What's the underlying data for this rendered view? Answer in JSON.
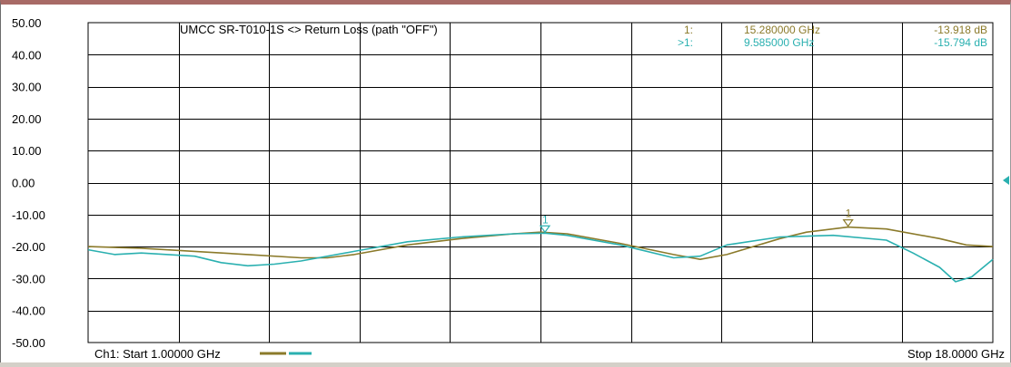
{
  "chart_data": {
    "type": "line",
    "title": "UMCC  SR-T010-1S <> Return Loss (path \"OFF\")",
    "xlim": [
      1.0,
      18.0
    ],
    "ylim": [
      -50,
      50
    ],
    "grid": true,
    "y_ticks": [
      "50.00",
      "40.00",
      "30.00",
      "20.00",
      "10.00",
      "0.00",
      "-10.00",
      "-20.00",
      "-30.00",
      "-40.00",
      "-50.00"
    ],
    "footer": {
      "start": "Ch1: Start  1.00000 GHz",
      "stop": "Stop  18.0000 GHz"
    },
    "series": [
      {
        "color": "#8b7a2a",
        "x": [
          1.0,
          2.0,
          3.0,
          4.0,
          5.0,
          5.5,
          6.0,
          7.0,
          8.0,
          9.0,
          9.5,
          10.0,
          11.0,
          12.0,
          12.5,
          13.0,
          14.0,
          14.5,
          15.28,
          16.0,
          17.0,
          17.5,
          18.0
        ],
        "y": [
          -20,
          -20.5,
          -21.5,
          -22.5,
          -23.5,
          -23.5,
          -22.5,
          -19.5,
          -17.5,
          -16.0,
          -15.5,
          -16.0,
          -19.0,
          -22.5,
          -24.0,
          -22.5,
          -17.5,
          -15.5,
          -13.918,
          -14.5,
          -17.5,
          -19.5,
          -20.0
        ]
      },
      {
        "color": "#2ab0b0",
        "x": [
          1.0,
          1.5,
          2.0,
          3.0,
          3.5,
          4.0,
          4.5,
          5.0,
          6.0,
          7.0,
          8.0,
          9.0,
          9.585,
          10.0,
          11.0,
          12.0,
          12.5,
          13.0,
          14.0,
          15.0,
          16.0,
          16.5,
          17.0,
          17.3,
          17.6,
          18.0
        ],
        "y": [
          -21.0,
          -22.5,
          -22.0,
          -23.0,
          -25.0,
          -26.0,
          -25.5,
          -24.5,
          -21.5,
          -18.5,
          -17.0,
          -16.0,
          -15.794,
          -16.5,
          -19.5,
          -23.5,
          -23.0,
          -19.5,
          -17.0,
          -16.5,
          -18.0,
          -22.0,
          -26.5,
          -31.0,
          -29.5,
          -24.0
        ]
      }
    ],
    "markers": [
      {
        "series": 0,
        "label": "1",
        "x": 15.28,
        "y": -13.918
      },
      {
        "series": 1,
        "label": "1",
        "x": 9.585,
        "y": -15.794
      }
    ],
    "marker_readouts": [
      {
        "color": "#8b7a2a",
        "id": "1:",
        "freq": "15.280000 GHz",
        "value": "-13.918 dB"
      },
      {
        "color": "#2ab0b0",
        "id": ">1:",
        "freq": "9.585000 GHz",
        "value": "-15.794 dB"
      }
    ]
  }
}
